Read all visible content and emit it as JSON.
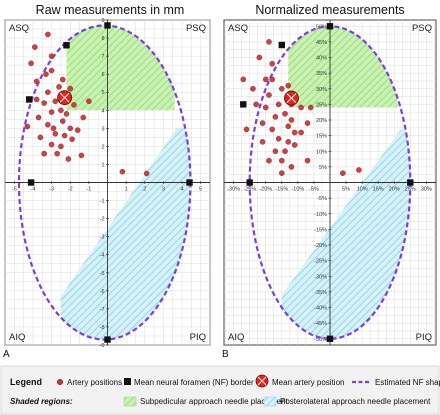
{
  "chart_data": [
    {
      "type": "scatter",
      "title": "Raw measurements in mm",
      "panel_label": "A",
      "xlim": [
        -5.5,
        5.5
      ],
      "ylim": [
        -9,
        9
      ],
      "x_ticks": [
        -5,
        -4,
        -3,
        -2,
        -1,
        0,
        1,
        2,
        3,
        4,
        5
      ],
      "x_tick_labels": [
        "-5",
        "-4",
        "-3",
        "-2",
        "-1",
        "0",
        "1",
        "2",
        "3",
        "4",
        "5"
      ],
      "y_ticks": [
        -9,
        -8,
        -7,
        -6,
        -5,
        -4,
        -3,
        -2,
        -1,
        1,
        2,
        3,
        4,
        5,
        6,
        7,
        8,
        9
      ],
      "y_tick_labels": [
        "-9",
        "-8",
        "-7",
        "-6",
        "-5",
        "-4",
        "-3",
        "-2",
        "-1",
        "1",
        "2",
        "3",
        "4",
        "5",
        "6",
        "7",
        "8",
        "9"
      ],
      "grid": true,
      "quadrants": [
        "ASQ",
        "PSQ",
        "AIQ",
        "PIQ"
      ],
      "nf_shape": {
        "center": [
          -0.15,
          0
        ],
        "rx": 4.6,
        "ry": 8.7
      },
      "nf_border_points": [
        [
          0,
          8.7
        ],
        [
          0,
          -8.7
        ],
        [
          4.4,
          0
        ],
        [
          -4.1,
          0
        ],
        [
          -4.2,
          4.6
        ],
        [
          -2.2,
          7.6
        ]
      ],
      "mean_artery_position": [
        -2.3,
        4.7
      ],
      "subpedicular_region": {
        "x": [
          -2.2,
          3.6
        ],
        "y": [
          4.0,
          8.7
        ]
      },
      "posterolateral_region": {
        "lower_x": -2.5,
        "lower_y": -6.3,
        "upper_x": 3.7,
        "upper_y": 3.0
      },
      "artery_positions": [
        [
          -4.1,
          6.6
        ],
        [
          -3.8,
          5.6
        ],
        [
          -3.0,
          7.0
        ],
        [
          -3.0,
          6.2
        ],
        [
          -2.6,
          5.3
        ],
        [
          -3.2,
          5.0
        ],
        [
          -2.8,
          4.5
        ],
        [
          -3.4,
          4.4
        ],
        [
          -2.2,
          4.5
        ],
        [
          -1.8,
          4.3
        ],
        [
          -2.5,
          4.0
        ],
        [
          -3.0,
          3.9
        ],
        [
          -3.7,
          3.6
        ],
        [
          -2.4,
          3.4
        ],
        [
          -3.2,
          3.2
        ],
        [
          -2.0,
          3.0
        ],
        [
          -3.6,
          2.5
        ],
        [
          -2.8,
          2.7
        ],
        [
          -2.3,
          2.6
        ],
        [
          -1.6,
          2.9
        ],
        [
          -1.9,
          2.4
        ],
        [
          -3.0,
          2.1
        ],
        [
          -2.5,
          2.0
        ],
        [
          -2.7,
          1.6
        ],
        [
          -3.4,
          1.6
        ],
        [
          -2.1,
          1.3
        ],
        [
          -1.4,
          1.5
        ],
        [
          -3.8,
          4.6
        ],
        [
          -3.9,
          7.5
        ],
        [
          -3.2,
          8.2
        ],
        [
          -1.0,
          4.5
        ],
        [
          -1.3,
          3.6
        ],
        [
          -2.4,
          5.7
        ],
        [
          -2.0,
          5.2
        ],
        [
          -4.3,
          3.1
        ],
        [
          -2.9,
          3.0
        ],
        [
          0.8,
          0.6
        ],
        [
          2.1,
          0.5
        ],
        [
          -3.3,
          6.0
        ],
        [
          -2.2,
          3.8
        ]
      ]
    },
    {
      "type": "scatter",
      "title": "Normalized measurements",
      "panel_label": "B",
      "xlim": [
        -33,
        33
      ],
      "ylim": [
        -52,
        52
      ],
      "x_ticks": [
        -30,
        -25,
        -20,
        -15,
        -10,
        -5,
        0,
        5,
        10,
        15,
        20,
        25,
        30
      ],
      "x_tick_labels": [
        "-30%",
        "-25%",
        "-20%",
        "-15%",
        "-10%",
        "-5%",
        "0%",
        "5%",
        "10%",
        "15%",
        "20%",
        "25%",
        "30%"
      ],
      "y_ticks": [
        -50,
        -45,
        -40,
        -35,
        -30,
        -25,
        -20,
        -15,
        -10,
        -5,
        5,
        10,
        15,
        20,
        25,
        30,
        35,
        40,
        45,
        50
      ],
      "y_tick_labels": [
        "-50%",
        "-45%",
        "-40%",
        "-35%",
        "-30%",
        "-25%",
        "-20%",
        "-15%",
        "-10%",
        "-5%",
        "5%",
        "10%",
        "15%",
        "20%",
        "25%",
        "30%",
        "35%",
        "40%",
        "45%",
        "50%"
      ],
      "grid": true,
      "quadrants": [
        "ASQ",
        "PSQ",
        "AIQ",
        "PIQ"
      ],
      "nf_shape": {
        "center": [
          0,
          0
        ],
        "rx": 25,
        "ry": 50
      },
      "nf_border_points": [
        [
          0,
          50
        ],
        [
          0,
          -50
        ],
        [
          25,
          0
        ],
        [
          -25,
          0
        ],
        [
          -27,
          25
        ],
        [
          -15,
          44
        ]
      ],
      "mean_artery_position": [
        -12,
        27
      ],
      "subpedicular_region": {
        "x": [
          -13,
          21
        ],
        "y": [
          24,
          50
        ]
      },
      "posterolateral_region": {
        "lower_x": -15,
        "lower_y": -36,
        "upper_x": 22,
        "upper_y": 17
      },
      "artery_positions": [
        [
          -27,
          33
        ],
        [
          -24,
          30
        ],
        [
          -18,
          38
        ],
        [
          -18,
          33
        ],
        [
          -15,
          30
        ],
        [
          -19,
          28
        ],
        [
          -16,
          25
        ],
        [
          -20,
          24
        ],
        [
          -12,
          25
        ],
        [
          -9,
          24
        ],
        [
          -14,
          22
        ],
        [
          -17,
          21
        ],
        [
          -21,
          19
        ],
        [
          -13,
          18
        ],
        [
          -18,
          17
        ],
        [
          -11,
          16
        ],
        [
          -21,
          13
        ],
        [
          -16,
          14
        ],
        [
          -13,
          13
        ],
        [
          -9,
          16
        ],
        [
          -11,
          12
        ],
        [
          -17,
          10
        ],
        [
          -14,
          10
        ],
        [
          -15,
          7
        ],
        [
          -19,
          7
        ],
        [
          -12,
          5
        ],
        [
          -7,
          7
        ],
        [
          -23,
          25
        ],
        [
          -22,
          40
        ],
        [
          -19,
          45
        ],
        [
          -6,
          24
        ],
        [
          -7,
          19
        ],
        [
          -13,
          31
        ],
        [
          -11,
          28
        ],
        [
          -26,
          17
        ],
        [
          -15,
          3
        ],
        [
          4,
          3
        ],
        [
          9,
          4
        ],
        [
          -20,
          33
        ],
        [
          -12,
          20
        ]
      ]
    }
  ],
  "legend": {
    "heading": "Legend",
    "items": [
      {
        "label": "Artery positions",
        "icon": "red-circle-marker",
        "color": "#c43434"
      },
      {
        "label": "Mean neural foramen (NF) border",
        "icon": "black-square-marker",
        "color": "#111111"
      },
      {
        "label": "Mean artery position",
        "icon": "large-red-crossed-circle-marker",
        "color": "#e0231b"
      },
      {
        "label": "Estimated NF shape",
        "icon": "purple-dashed-line",
        "color": "#7a3fe0"
      }
    ],
    "shaded_heading": "Shaded regions:",
    "shaded_items": [
      {
        "label": "Subpedicular approach needle placement",
        "icon": "green-hatched-swatch",
        "color": "#b9ec9c"
      },
      {
        "label": "Posterolateral approach needle placement",
        "icon": "blue-hatched-swatch",
        "color": "#bfe8f2"
      }
    ]
  },
  "colors": {
    "nf_shape": "#7a3fe0",
    "artery": "#c43434",
    "mean_artery": "#e0231b",
    "subpedicular_fill": "#b9ec9c",
    "posterolateral_fill": "#bfe8f2",
    "grid": "#dcdcdc"
  }
}
